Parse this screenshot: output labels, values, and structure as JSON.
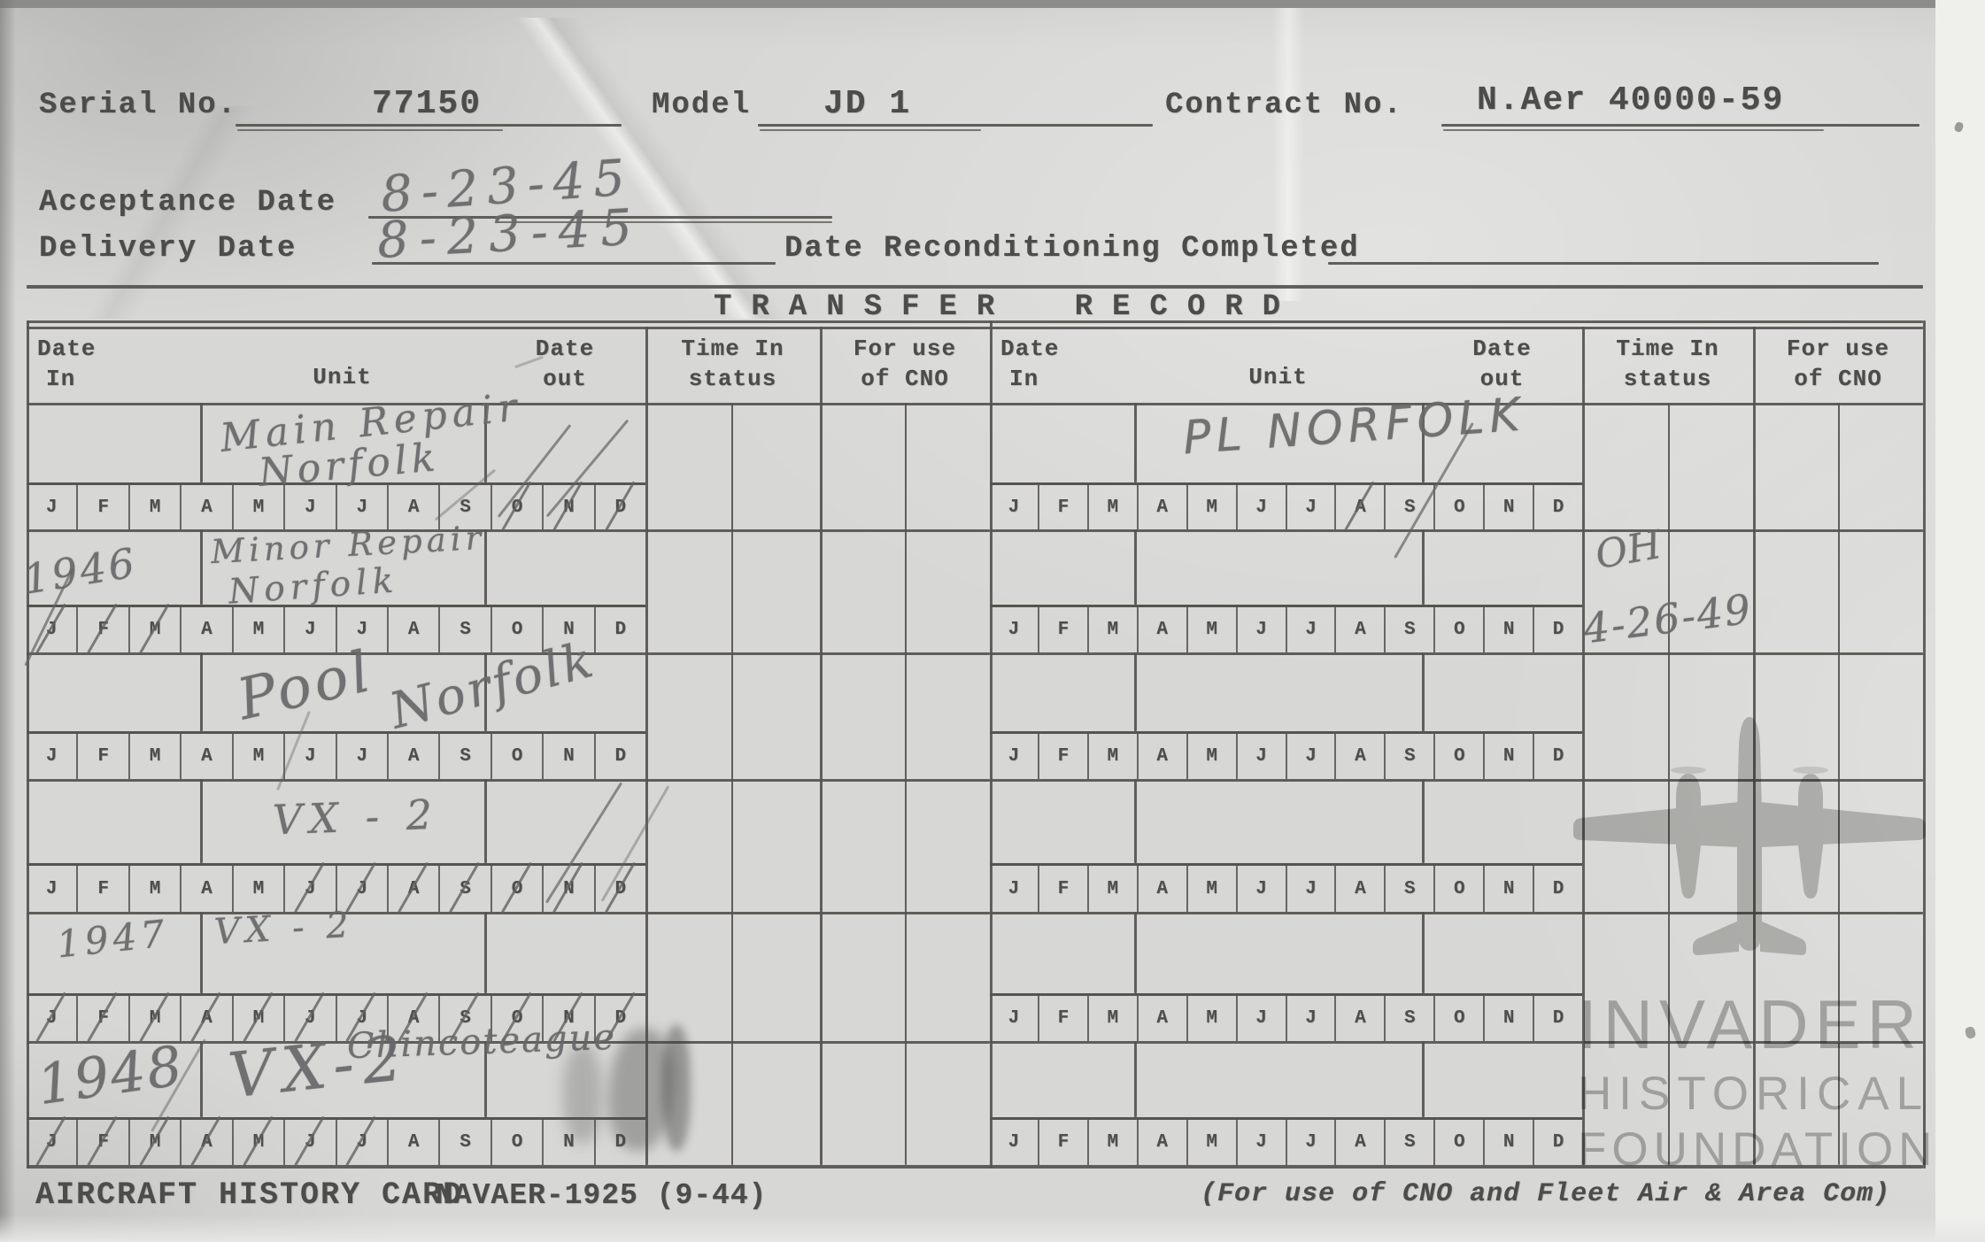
{
  "header": {
    "serial_label": "Serial No.",
    "serial_value": "77150",
    "model_label": "Model",
    "model_value": "JD 1",
    "contract_label": "Contract No.",
    "contract_value": "N.Aer 40000-59",
    "acceptance_label": "Acceptance Date",
    "acceptance_value": "8-23-45",
    "delivery_label": "Delivery Date",
    "delivery_value": "8-23-45",
    "reconditioning_label": "Date Reconditioning Completed",
    "reconditioning_value": ""
  },
  "transfer_record": {
    "title": "TRANSFER RECORD",
    "col_headers": {
      "date_in": [
        "Date",
        "In"
      ],
      "unit": "Unit",
      "date_out": [
        "Date",
        "out"
      ],
      "time_in_status": [
        "Time In",
        "status"
      ],
      "for_use_cno": [
        "For use",
        "of CNO"
      ]
    },
    "months": [
      "J",
      "F",
      "M",
      "A",
      "M",
      "J",
      "J",
      "A",
      "S",
      "O",
      "N",
      "D"
    ],
    "left_rows": [
      {
        "date_in": "",
        "unit1": "Main Repair",
        "unit2": "Norfolk",
        "struck_months": [
          10,
          11,
          12
        ]
      },
      {
        "date_in": "1946",
        "unit1": "Minor Repair",
        "unit2": "Norfolk",
        "struck_months": [
          1,
          2,
          3
        ]
      },
      {
        "date_in": "",
        "unit1": "Pool",
        "unit2": "Norfolk",
        "struck_months": []
      },
      {
        "date_in": "",
        "unit1": "VX - 2",
        "unit2": "",
        "struck_months": [
          6,
          7,
          8,
          9,
          10,
          11,
          12
        ]
      },
      {
        "date_in": "1947",
        "unit1": "VX - 2",
        "unit2": "",
        "struck_months": [
          1,
          2,
          3,
          4,
          5,
          6,
          7,
          8,
          9,
          10,
          11,
          12
        ]
      },
      {
        "date_in": "1948",
        "unit1": "VX-2",
        "unit2": "",
        "note": "Chincoteague",
        "struck_months": [
          1,
          2,
          3,
          4,
          5,
          6,
          7
        ]
      }
    ],
    "right_rows": [
      {
        "date_in": "",
        "unit1": "PL NORFOLK",
        "time1": "",
        "time2": "",
        "struck_months": [
          8
        ]
      },
      {
        "date_in": "",
        "unit1": "",
        "time1": "OH",
        "time2": "4-26-49",
        "struck_months": []
      },
      {
        "date_in": "",
        "unit1": "",
        "time1": "",
        "time2": "",
        "struck_months": []
      },
      {
        "date_in": "",
        "unit1": "",
        "time1": "",
        "time2": "",
        "struck_months": []
      },
      {
        "date_in": "",
        "unit1": "",
        "time1": "",
        "time2": "",
        "struck_months": []
      },
      {
        "date_in": "",
        "unit1": "",
        "time1": "",
        "time2": "",
        "struck_months": []
      }
    ]
  },
  "footer": {
    "card_title": "AIRCRAFT HISTORY CARD",
    "form_number": "NAVAER-1925 (9-44)",
    "cno_note": "(For use of CNO and Fleet Air & Area Com)"
  },
  "watermark": {
    "line1": "INVADER",
    "line2": "HISTORICAL",
    "line3": "FOUNDATION"
  }
}
